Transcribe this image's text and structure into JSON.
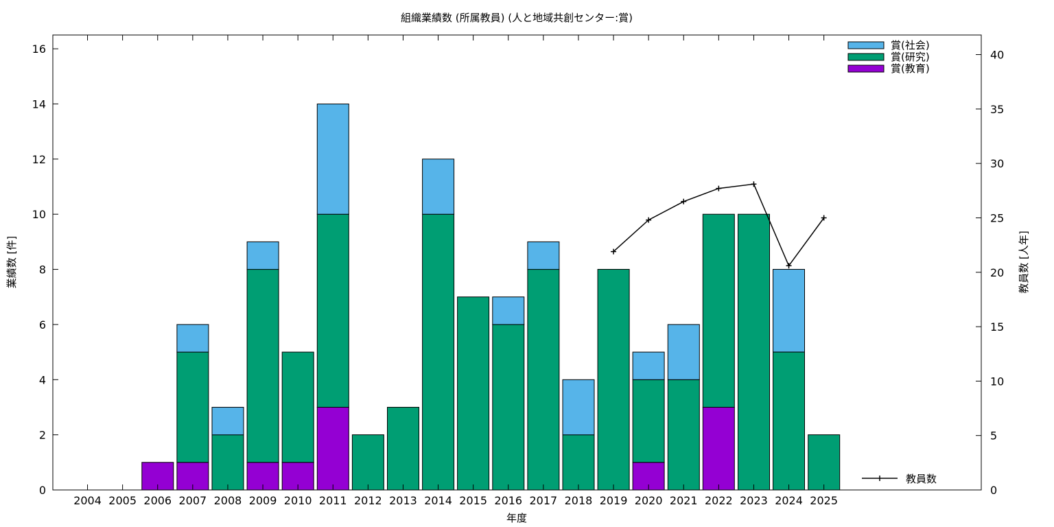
{
  "chart_data": {
    "type": "bar",
    "stacked": true,
    "title": "組織業績数 (所属教員) (人と地域共創センター:賞)",
    "xlabel": "年度",
    "ylabel": "業績数 [件]",
    "y2label": "教員数 [人年]",
    "ylim": [
      0,
      16.5
    ],
    "yticks": [
      0,
      2,
      4,
      6,
      8,
      10,
      12,
      14,
      16
    ],
    "y2lim": [
      0,
      41.8
    ],
    "y2ticks": [
      0,
      5,
      10,
      15,
      20,
      25,
      30,
      35,
      40
    ],
    "grid": false,
    "legend_position": "top-right",
    "categories": [
      "2004",
      "2005",
      "2006",
      "2007",
      "2008",
      "2009",
      "2010",
      "2011",
      "2012",
      "2013",
      "2014",
      "2015",
      "2016",
      "2017",
      "2018",
      "2019",
      "2020",
      "2021",
      "2022",
      "2023",
      "2024",
      "2025"
    ],
    "series": [
      {
        "name": "賞(教育)",
        "color": "#9400d3",
        "values": [
          0,
          0,
          1,
          1,
          0,
          1,
          1,
          3,
          0,
          0,
          0,
          0,
          0,
          0,
          0,
          0,
          1,
          0,
          3,
          0,
          0,
          0
        ]
      },
      {
        "name": "賞(研究)",
        "color": "#009e73",
        "values": [
          0,
          0,
          0,
          4,
          2,
          7,
          4,
          7,
          2,
          3,
          10,
          7,
          6,
          8,
          2,
          8,
          3,
          4,
          7,
          10,
          5,
          2
        ]
      },
      {
        "name": "賞(社会)",
        "color": "#56b4e9",
        "values": [
          0,
          0,
          0,
          1,
          1,
          1,
          0,
          4,
          0,
          0,
          2,
          0,
          1,
          1,
          2,
          0,
          1,
          2,
          0,
          0,
          3,
          0
        ]
      }
    ],
    "line_series": {
      "name": "教員数",
      "axis": "y2",
      "color": "#000000",
      "x": [
        "2019",
        "2020",
        "2021",
        "2022",
        "2023",
        "2024",
        "2025"
      ],
      "values": [
        21.9,
        24.8,
        26.5,
        27.7,
        28.1,
        20.6,
        25.0
      ]
    }
  }
}
